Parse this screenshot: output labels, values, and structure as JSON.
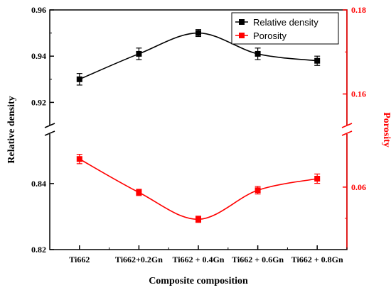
{
  "chart_data": {
    "type": "line",
    "xlabel": "Composite composition",
    "ylabel_left": "Relative density",
    "ylabel_right": "Porosity",
    "categories": [
      "Ti662",
      "Ti662+0.2Gn",
      "Ti662 + 0.4Gn",
      "Ti662 + 0.6Gn",
      "Ti662 + 0.8Gn"
    ],
    "left_axis": {
      "upper_range": [
        0.91,
        0.96
      ],
      "lower_range": [
        0.82,
        0.855
      ],
      "upper_ticks": [
        "0.92",
        "0.94",
        "0.96"
      ],
      "lower_ticks": [
        "0.82",
        "0.84"
      ],
      "break": true
    },
    "right_axis": {
      "upper_range": [
        0.1525,
        0.18
      ],
      "lower_range": [
        0.04,
        0.077
      ],
      "upper_ticks": [
        "0.16",
        "0.18"
      ],
      "lower_ticks": [
        "0.06"
      ],
      "break": true,
      "color": "#ff0000"
    },
    "series": [
      {
        "name": "Relative density",
        "color": "#000000",
        "axis": "left",
        "values": [
          0.93,
          0.941,
          0.95,
          0.941,
          0.938
        ],
        "errors": [
          0.0025,
          0.0025,
          0.0015,
          0.0025,
          0.002
        ]
      },
      {
        "name": "Porosity",
        "color": "#ff0000",
        "axis": "right",
        "values": [
          0.069,
          0.0583,
          0.0497,
          0.059,
          0.0627
        ],
        "errors": [
          0.0015,
          0.001,
          0.001,
          0.0012,
          0.0015
        ]
      }
    ],
    "legend": {
      "placement": "top-right"
    },
    "grid": false
  }
}
